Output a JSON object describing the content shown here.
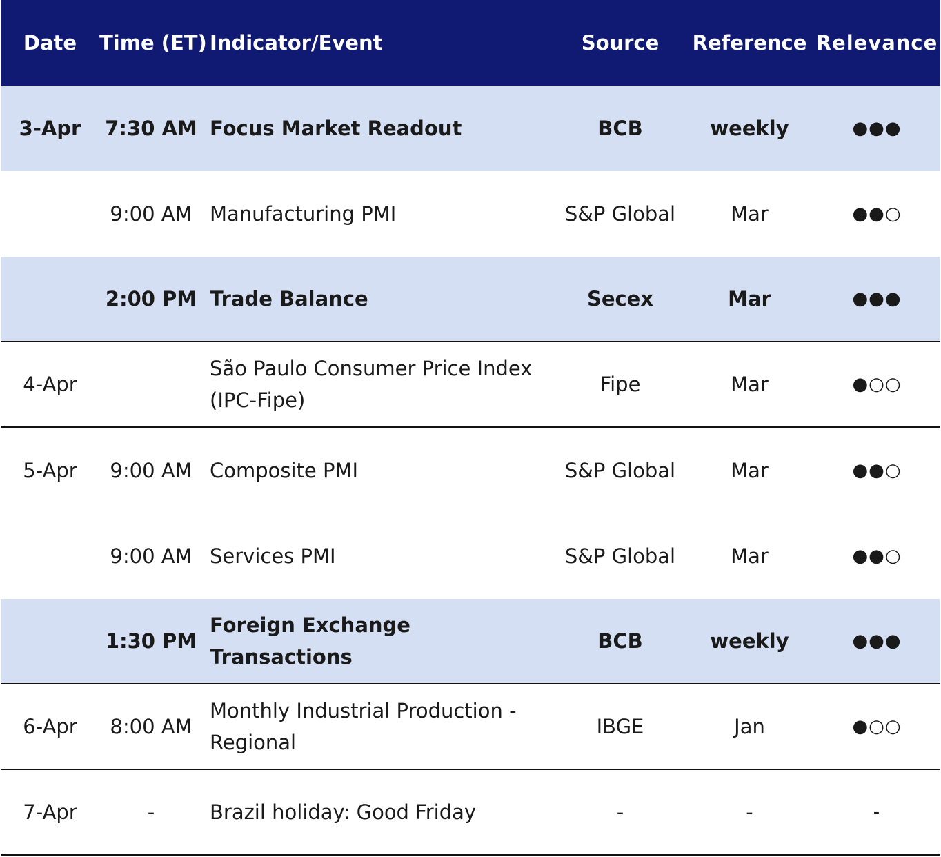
{
  "header": {
    "date": "Date",
    "time": "Time (ET)",
    "indicator": "Indicator/Event",
    "source": "Source",
    "reference": "Reference",
    "relevance": "Relevance"
  },
  "rows": [
    {
      "date": "3-Apr",
      "time": "7:30 AM",
      "indicator": "Focus Market Readout",
      "source": "BCB",
      "reference": "weekly",
      "relevance": "●●●"
    },
    {
      "date": "",
      "time": "9:00 AM",
      "indicator": "Manufacturing PMI",
      "source": "S&P Global",
      "reference": "Mar",
      "relevance": "●●○"
    },
    {
      "date": "",
      "time": "2:00 PM",
      "indicator": "Trade Balance",
      "source": "Secex",
      "reference": "Mar",
      "relevance": "●●●"
    },
    {
      "date": "4-Apr",
      "time": "",
      "indicator": "São Paulo Consumer Price Index (IPC-Fipe)",
      "source": "Fipe",
      "reference": "Mar",
      "relevance": "●○○"
    },
    {
      "date": "5-Apr",
      "time": "9:00 AM",
      "indicator": "Composite PMI",
      "source": "S&P Global",
      "reference": "Mar",
      "relevance": "●●○"
    },
    {
      "date": "",
      "time": "9:00 AM",
      "indicator": "Services PMI",
      "source": "S&P Global",
      "reference": "Mar",
      "relevance": "●●○"
    },
    {
      "date": "",
      "time": "1:30 PM",
      "indicator": "Foreign Exchange Transactions",
      "source": "BCB",
      "reference": "weekly",
      "relevance": "●●●"
    },
    {
      "date": "6-Apr",
      "time": "8:00 AM",
      "indicator": "Monthly Industrial Production - Regional",
      "source": "IBGE",
      "reference": "Jan",
      "relevance": "●○○"
    },
    {
      "date": "7-Apr",
      "time": "-",
      "indicator": "Brazil holiday: Good Friday",
      "source": "-",
      "reference": "-",
      "relevance": "-"
    }
  ]
}
